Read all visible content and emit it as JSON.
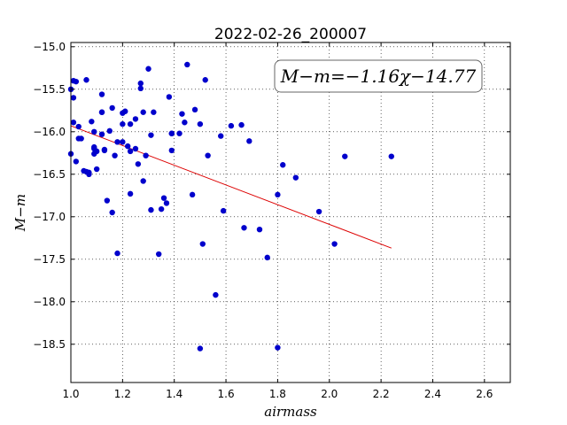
{
  "chart_data": {
    "type": "scatter",
    "title": "2022-02-26_200007",
    "xlabel": "airmass",
    "ylabel": "M−m",
    "xlim": [
      1.0,
      2.7
    ],
    "ylim": [
      -18.95,
      -14.95
    ],
    "y_inverted": true,
    "grid": true,
    "x_ticks": [
      1.0,
      1.2,
      1.4,
      1.6,
      1.8,
      2.0,
      2.2,
      2.4,
      2.6
    ],
    "x_tick_labels": [
      "1.0",
      "1.2",
      "1.4",
      "1.6",
      "1.8",
      "2.0",
      "2.2",
      "2.4",
      "2.6"
    ],
    "y_ticks": [
      -15.0,
      -15.5,
      -16.0,
      -16.5,
      -17.0,
      -17.5,
      -18.0,
      -18.5
    ],
    "y_tick_labels": [
      "−15.0",
      "−15.5",
      "−16.0",
      "−16.5",
      "−17.0",
      "−17.5",
      "−18.0",
      "−18.5"
    ],
    "annotation": "M−m=−1.16χ−14.77",
    "point_color": "#0000cc",
    "line_color": "#dd0000",
    "fit": {
      "slope": -1.16,
      "intercept": -14.77,
      "x_range": [
        1.0,
        2.24
      ]
    },
    "series": [
      {
        "x": [
          1.0,
          1.0,
          1.02,
          1.06,
          1.01,
          1.02,
          1.01,
          1.01,
          1.03,
          1.03,
          1.04,
          1.05,
          1.06,
          1.07,
          1.07,
          1.08,
          1.09,
          1.09,
          1.1,
          1.1,
          1.09,
          1.09,
          1.12,
          1.12,
          1.12,
          1.12,
          1.13,
          1.13,
          1.15,
          1.14,
          1.16,
          1.16,
          1.17,
          1.18,
          1.18,
          1.2,
          1.2,
          1.2,
          1.21,
          1.22,
          1.23,
          1.23,
          1.23,
          1.25,
          1.25,
          1.26,
          1.27,
          1.27,
          1.28,
          1.28,
          1.29,
          1.3,
          1.31,
          1.31,
          1.32,
          1.34,
          1.35,
          1.36,
          1.37,
          1.38,
          1.39,
          1.39,
          1.39,
          1.42,
          1.43,
          1.44,
          1.45,
          1.47,
          1.48,
          1.5,
          1.5,
          1.51,
          1.52,
          1.53,
          1.56,
          1.58,
          1.59,
          1.62,
          1.66,
          1.67,
          1.69,
          1.73,
          1.76,
          1.8,
          1.8,
          1.82,
          1.87,
          1.96,
          2.02,
          2.06,
          2.24
        ],
        "y": [
          -15.5,
          -16.26,
          -15.41,
          -15.39,
          -15.89,
          -16.35,
          -15.4,
          -15.6,
          -15.94,
          -16.08,
          -16.08,
          -16.46,
          -16.47,
          -16.5,
          -16.48,
          -15.88,
          -16.0,
          -16.2,
          -16.23,
          -16.44,
          -16.18,
          -16.26,
          -15.56,
          -15.77,
          -15.77,
          -16.03,
          -16.21,
          -16.22,
          -15.99,
          -16.81,
          -16.95,
          -15.72,
          -16.28,
          -17.43,
          -16.12,
          -15.78,
          -15.91,
          -16.12,
          -15.76,
          -16.17,
          -15.91,
          -16.23,
          -16.73,
          -15.85,
          -16.2,
          -16.38,
          -15.43,
          -15.49,
          -15.77,
          -16.58,
          -16.28,
          -15.26,
          -16.04,
          -16.92,
          -15.77,
          -17.44,
          -16.91,
          -16.78,
          -16.84,
          -15.59,
          -16.22,
          -16.02,
          -16.02,
          -16.02,
          -15.79,
          -15.89,
          -15.21,
          -16.74,
          -15.74,
          -18.55,
          -15.91,
          -17.32,
          -15.39,
          -16.28,
          -17.92,
          -16.05,
          -16.93,
          -15.93,
          -15.92,
          -17.13,
          -16.11,
          -17.15,
          -17.48,
          -18.54,
          -16.74,
          -16.39,
          -16.54,
          -16.94,
          -17.32,
          -16.29,
          -16.29
        ]
      }
    ]
  }
}
